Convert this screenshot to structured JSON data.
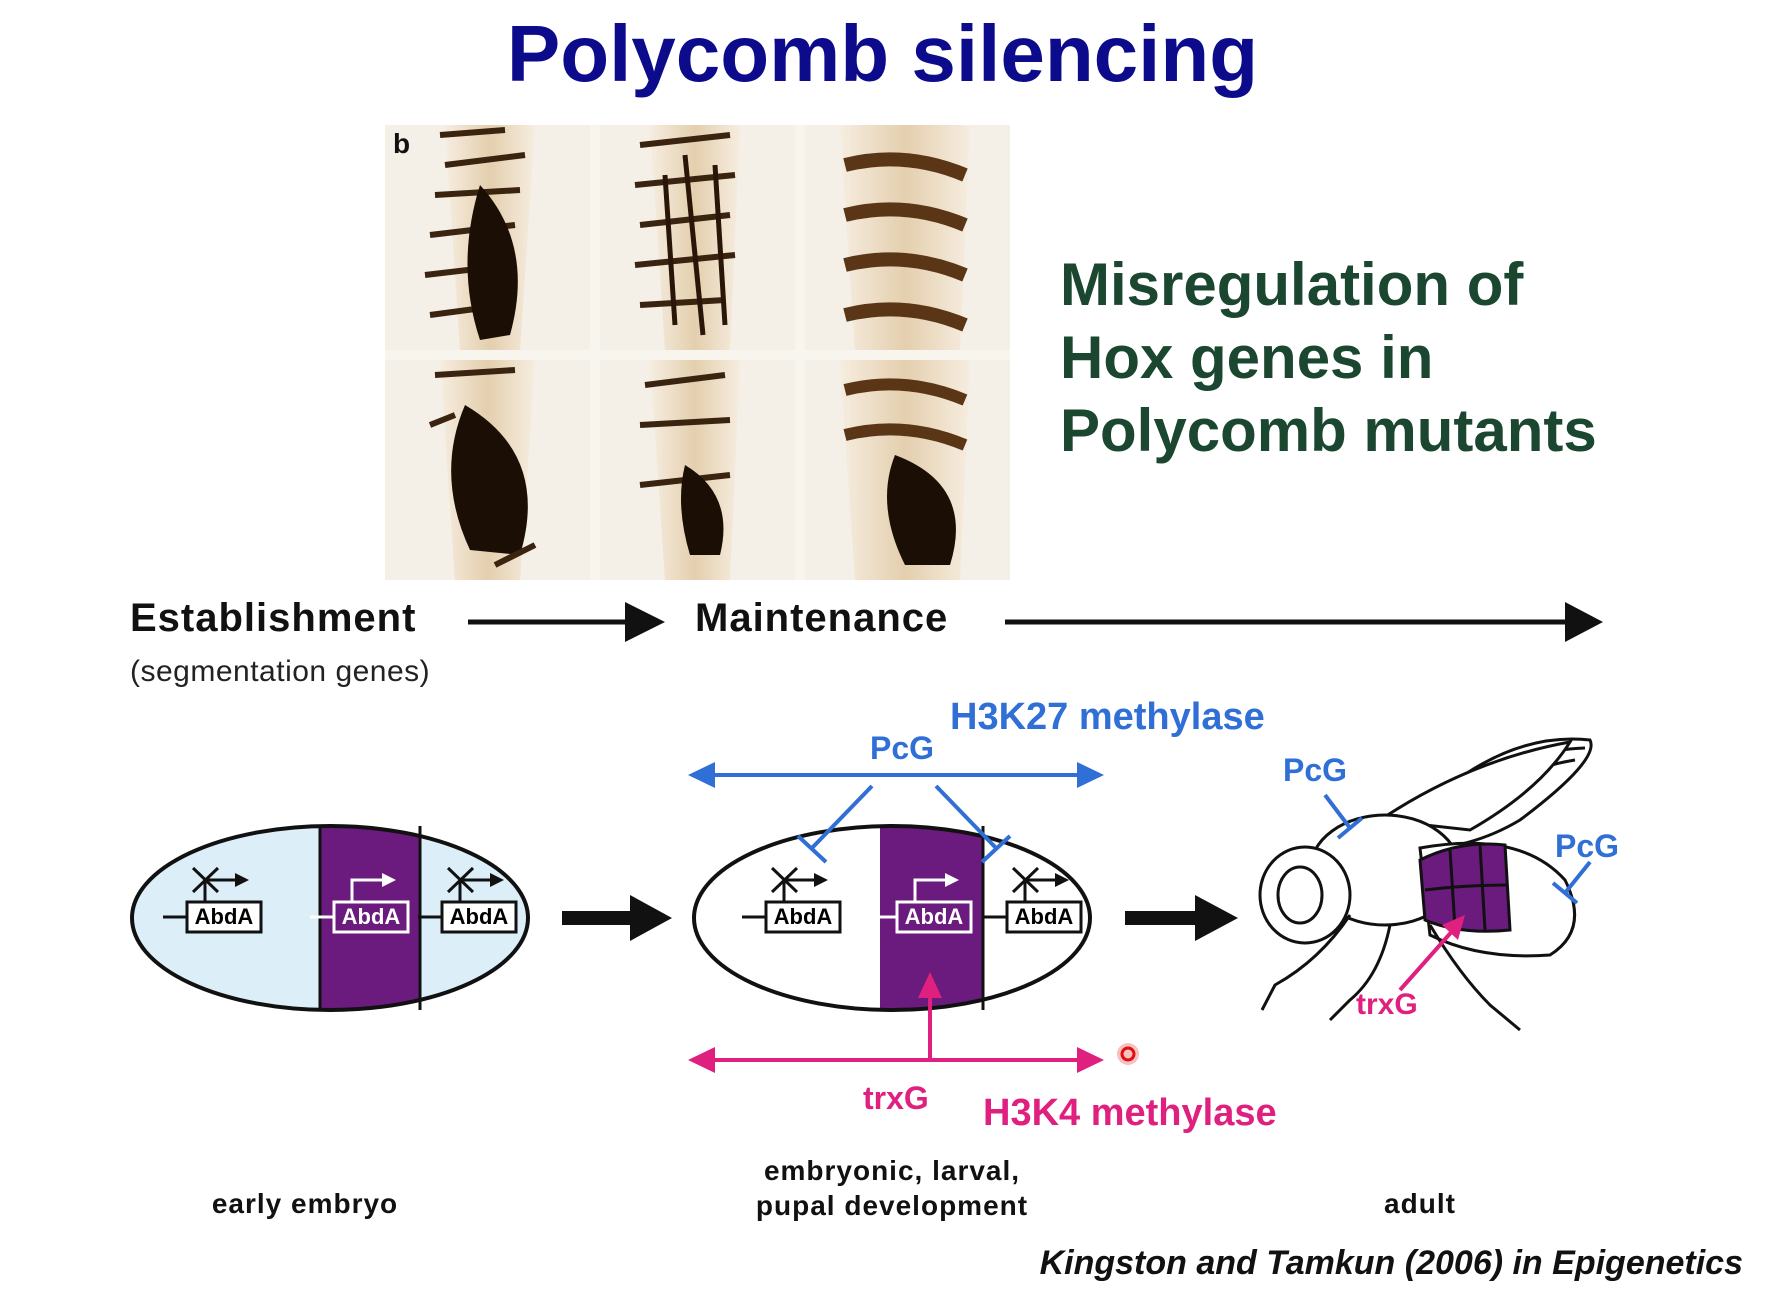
{
  "title": "Polycomb silencing",
  "photo_panel": {
    "label": "b"
  },
  "misregulation": {
    "line1": "Misregulation of",
    "line2": "Hox genes in",
    "line3": "Polycomb mutants"
  },
  "timeline": {
    "establishment": "Establishment",
    "establishment_sub": "(segmentation genes)",
    "maintenance": "Maintenance"
  },
  "diagram": {
    "gene_label": "AbdA",
    "pcg_label": "PcG",
    "trxg_label": "trxG",
    "h3k27_label": "H3K27 methylase",
    "h3k4_label": "H3K4 methylase"
  },
  "captions": {
    "early_embryo": "early embryo",
    "maintenance_line1": "embryonic, larval,",
    "maintenance_line2": "pupal development",
    "adult": "adult"
  },
  "citation": "Kingston and Tamkun (2006) in Epigenetics",
  "colors": {
    "title": "#0b0b8c",
    "misregulation": "#1b4630",
    "pcg_blue": "#2f6fd6",
    "trxg_pink": "#e0207f",
    "abda_purple": "#6b1a7d",
    "embryo_light_blue": "#dceef8"
  }
}
